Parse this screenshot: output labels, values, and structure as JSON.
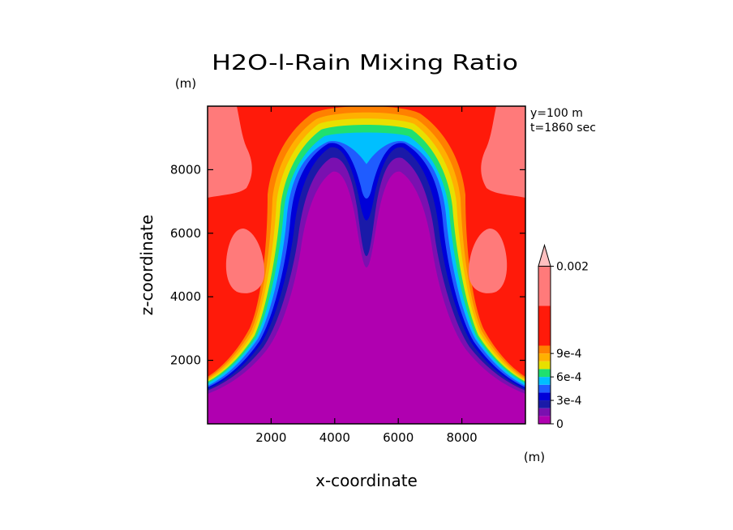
{
  "chart_data": {
    "type": "heatmap",
    "title": "H2O-l-Rain Mixing Ratio",
    "xlabel": "x-coordinate",
    "ylabel": "z-coordinate",
    "x_unit": "(m)",
    "y_unit": "(m)",
    "annotations": [
      "y=100 m",
      "t=1860 sec"
    ],
    "xlim": [
      0,
      10000
    ],
    "ylim": [
      0,
      10000
    ],
    "xticks": [
      2000,
      4000,
      6000,
      8000
    ],
    "xtick_labels": [
      "2000",
      "4000",
      "6000",
      "8000"
    ],
    "yticks": [
      2000,
      4000,
      6000,
      8000
    ],
    "ytick_labels": [
      "2000",
      "4000",
      "6000",
      "8000"
    ],
    "colorbar": {
      "levels": [
        0,
        0.0001,
        0.0002,
        0.0003,
        0.0004,
        0.0005,
        0.0006,
        0.0007,
        0.0008,
        0.0009,
        0.001,
        0.0015,
        0.002
      ],
      "colors": [
        "#b000b0",
        "#7a10b0",
        "#1a1aa8",
        "#0000d8",
        "#1f5cff",
        "#00bfff",
        "#1fe070",
        "#e8e000",
        "#ffb000",
        "#ff8000",
        "#ff1a0a",
        "#ff7a7a"
      ],
      "overflow_color": "#ffc0c0",
      "labels": [
        {
          "value": 0,
          "text": "0"
        },
        {
          "value": 0.0003,
          "text": "3e-4"
        },
        {
          "value": 0.0006,
          "text": "6e-4"
        },
        {
          "value": 0.0009,
          "text": "9e-4"
        },
        {
          "value": 0.002,
          "text": "0.002"
        }
      ]
    }
  }
}
